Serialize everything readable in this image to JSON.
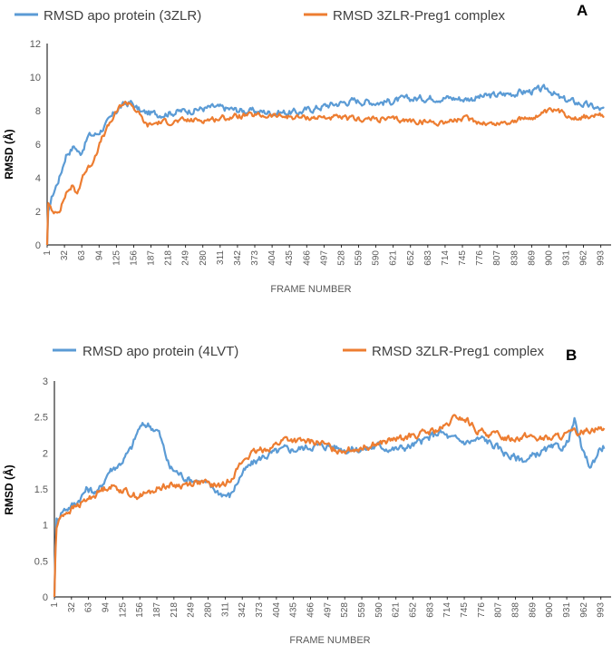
{
  "chart_data": [
    {
      "type": "line",
      "panel_label": "A",
      "xlabel": "FRAME NUMBER",
      "ylabel": "RMSD (Å)",
      "ylim": [
        0,
        12
      ],
      "yticks": [
        "0",
        "2",
        "4",
        "6",
        "8",
        "10",
        "12"
      ],
      "x_range": [
        1,
        1000
      ],
      "xticks": [
        "1",
        "32",
        "63",
        "94",
        "125",
        "156",
        "187",
        "218",
        "249",
        "280",
        "311",
        "342",
        "373",
        "404",
        "435",
        "466",
        "497",
        "528",
        "559",
        "590",
        "621",
        "652",
        "683",
        "714",
        "745",
        "776",
        "807",
        "838",
        "869",
        "900",
        "931",
        "962",
        "993"
      ],
      "series": [
        {
          "name": "RMSD apo protein (3ZLR)",
          "color": "#5B9BD5",
          "anchors": [
            [
              1,
              0
            ],
            [
              3,
              2.0
            ],
            [
              10,
              2.9
            ],
            [
              25,
              4.2
            ],
            [
              35,
              5.4
            ],
            [
              50,
              5.9
            ],
            [
              60,
              5.4
            ],
            [
              75,
              6.5
            ],
            [
              90,
              6.6
            ],
            [
              110,
              7.3
            ],
            [
              130,
              8.2
            ],
            [
              150,
              8.5
            ],
            [
              170,
              7.9
            ],
            [
              200,
              7.8
            ],
            [
              250,
              8.0
            ],
            [
              300,
              8.2
            ],
            [
              350,
              8.0
            ],
            [
              400,
              7.9
            ],
            [
              450,
              7.9
            ],
            [
              500,
              8.3
            ],
            [
              550,
              8.6
            ],
            [
              600,
              8.5
            ],
            [
              650,
              8.7
            ],
            [
              700,
              8.8
            ],
            [
              750,
              8.7
            ],
            [
              800,
              8.9
            ],
            [
              850,
              9.1
            ],
            [
              880,
              9.2
            ],
            [
              900,
              9.3
            ],
            [
              920,
              8.7
            ],
            [
              960,
              8.4
            ],
            [
              1000,
              8.0
            ]
          ],
          "noise": 0.35
        },
        {
          "name": "RMSD 3ZLR-Preg1 complex",
          "color": "#ED7D31",
          "anchors": [
            [
              1,
              0
            ],
            [
              3,
              2.5
            ],
            [
              10,
              1.9
            ],
            [
              25,
              2.2
            ],
            [
              35,
              3.1
            ],
            [
              45,
              3.5
            ],
            [
              55,
              3.0
            ],
            [
              65,
              4.2
            ],
            [
              80,
              4.8
            ],
            [
              100,
              6.4
            ],
            [
              120,
              7.6
            ],
            [
              135,
              8.4
            ],
            [
              150,
              8.5
            ],
            [
              165,
              7.8
            ],
            [
              180,
              7.1
            ],
            [
              200,
              7.3
            ],
            [
              250,
              7.4
            ],
            [
              300,
              7.5
            ],
            [
              350,
              7.7
            ],
            [
              400,
              7.7
            ],
            [
              450,
              7.6
            ],
            [
              500,
              7.6
            ],
            [
              550,
              7.5
            ],
            [
              600,
              7.5
            ],
            [
              650,
              7.4
            ],
            [
              700,
              7.3
            ],
            [
              750,
              7.5
            ],
            [
              800,
              7.2
            ],
            [
              840,
              7.4
            ],
            [
              880,
              7.7
            ],
            [
              910,
              8.0
            ],
            [
              950,
              7.6
            ],
            [
              1000,
              7.7
            ]
          ],
          "noise": 0.28
        }
      ]
    },
    {
      "type": "line",
      "panel_label": "B",
      "xlabel": "FRAME NUMBER",
      "ylabel": "RMSD (Å)",
      "ylim": [
        0,
        3
      ],
      "yticks": [
        "0",
        "0.5",
        "1",
        "1.5",
        "2",
        "2.5",
        "3"
      ],
      "x_range": [
        1,
        1000
      ],
      "xticks": [
        "1",
        "32",
        "63",
        "94",
        "125",
        "156",
        "187",
        "218",
        "249",
        "280",
        "311",
        "342",
        "373",
        "404",
        "435",
        "466",
        "497",
        "528",
        "559",
        "590",
        "621",
        "652",
        "683",
        "714",
        "745",
        "776",
        "807",
        "838",
        "869",
        "900",
        "931",
        "962",
        "993"
      ],
      "series": [
        {
          "name": "RMSD apo protein (4LVT)",
          "color": "#5B9BD5",
          "anchors": [
            [
              1,
              0
            ],
            [
              4,
              1.05
            ],
            [
              15,
              1.2
            ],
            [
              40,
              1.3
            ],
            [
              60,
              1.5
            ],
            [
              80,
              1.45
            ],
            [
              100,
              1.75
            ],
            [
              120,
              1.85
            ],
            [
              140,
              2.05
            ],
            [
              155,
              2.35
            ],
            [
              170,
              2.4
            ],
            [
              190,
              2.3
            ],
            [
              210,
              1.8
            ],
            [
              240,
              1.65
            ],
            [
              270,
              1.6
            ],
            [
              300,
              1.45
            ],
            [
              320,
              1.4
            ],
            [
              340,
              1.7
            ],
            [
              360,
              1.85
            ],
            [
              380,
              1.95
            ],
            [
              400,
              2.0
            ],
            [
              420,
              2.05
            ],
            [
              440,
              2.05
            ],
            [
              470,
              2.1
            ],
            [
              500,
              2.1
            ],
            [
              530,
              2.05
            ],
            [
              560,
              2.05
            ],
            [
              590,
              2.1
            ],
            [
              620,
              2.05
            ],
            [
              650,
              2.1
            ],
            [
              680,
              2.2
            ],
            [
              700,
              2.3
            ],
            [
              720,
              2.2
            ],
            [
              750,
              2.15
            ],
            [
              780,
              2.2
            ],
            [
              800,
              2.1
            ],
            [
              830,
              1.95
            ],
            [
              860,
              1.9
            ],
            [
              880,
              2.0
            ],
            [
              900,
              2.05
            ],
            [
              930,
              2.1
            ],
            [
              945,
              2.45
            ],
            [
              960,
              2.0
            ],
            [
              975,
              1.8
            ],
            [
              990,
              2.05
            ],
            [
              1000,
              2.1
            ]
          ],
          "noise": 0.09
        },
        {
          "name": "RMSD 3ZLR-Preg1 complex",
          "color": "#ED7D31",
          "anchors": [
            [
              1,
              0
            ],
            [
              4,
              0.95
            ],
            [
              15,
              1.15
            ],
            [
              40,
              1.25
            ],
            [
              60,
              1.35
            ],
            [
              80,
              1.45
            ],
            [
              100,
              1.55
            ],
            [
              120,
              1.5
            ],
            [
              150,
              1.4
            ],
            [
              175,
              1.45
            ],
            [
              200,
              1.55
            ],
            [
              230,
              1.55
            ],
            [
              260,
              1.6
            ],
            [
              290,
              1.55
            ],
            [
              310,
              1.55
            ],
            [
              330,
              1.75
            ],
            [
              350,
              1.95
            ],
            [
              380,
              2.05
            ],
            [
              400,
              2.1
            ],
            [
              420,
              2.2
            ],
            [
              450,
              2.15
            ],
            [
              480,
              2.15
            ],
            [
              510,
              2.05
            ],
            [
              540,
              2.05
            ],
            [
              570,
              2.1
            ],
            [
              600,
              2.15
            ],
            [
              630,
              2.2
            ],
            [
              660,
              2.25
            ],
            [
              690,
              2.3
            ],
            [
              710,
              2.35
            ],
            [
              730,
              2.5
            ],
            [
              750,
              2.45
            ],
            [
              770,
              2.3
            ],
            [
              800,
              2.25
            ],
            [
              830,
              2.2
            ],
            [
              860,
              2.25
            ],
            [
              880,
              2.2
            ],
            [
              900,
              2.2
            ],
            [
              930,
              2.25
            ],
            [
              960,
              2.3
            ],
            [
              980,
              2.35
            ],
            [
              1000,
              2.35
            ]
          ],
          "noise": 0.08
        }
      ]
    }
  ]
}
